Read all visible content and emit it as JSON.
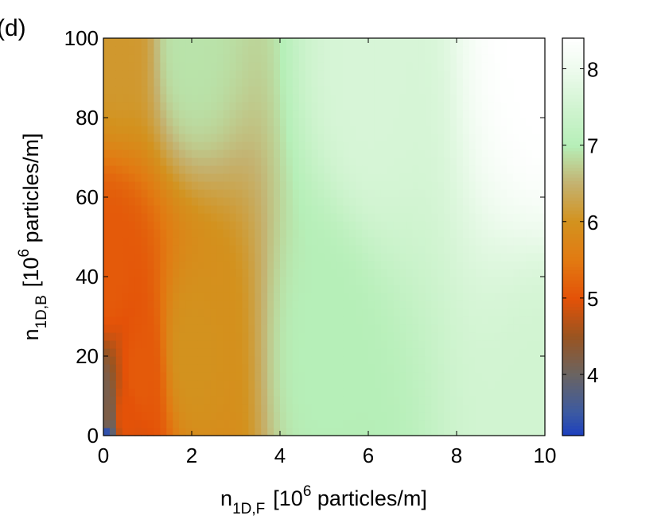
{
  "chart_data": {
    "type": "heatmap",
    "panel_label": "(d)",
    "xlabel": {
      "base": "n",
      "sub": "1D,F",
      "pre": "[10",
      "sup": "6",
      "post": " particles/m]"
    },
    "ylabel": {
      "base": "n",
      "sub": "1D,B",
      "pre": "[10",
      "sup": "6",
      "post": " particles/m]"
    },
    "xlim": [
      0,
      10
    ],
    "ylim": [
      0,
      100
    ],
    "xticks": [
      "0",
      "2",
      "4",
      "6",
      "8",
      "10"
    ],
    "yticks": [
      "0",
      "20",
      "40",
      "60",
      "80",
      "100"
    ],
    "colorbar": {
      "range": [
        3.2,
        8.4
      ],
      "ticks": [
        "4",
        "5",
        "6",
        "7",
        "8"
      ],
      "colors": [
        {
          "value": 3.2,
          "color": "#1c3fbf"
        },
        {
          "value": 3.5,
          "color": "#3c5aa2"
        },
        {
          "value": 4.0,
          "color": "#6a6462"
        },
        {
          "value": 4.5,
          "color": "#9a5420"
        },
        {
          "value": 5.0,
          "color": "#e45208"
        },
        {
          "value": 5.5,
          "color": "#e27a12"
        },
        {
          "value": 6.0,
          "color": "#d3921e"
        },
        {
          "value": 6.5,
          "color": "#c4b270"
        },
        {
          "value": 7.0,
          "color": "#b6efb8"
        },
        {
          "value": 7.5,
          "color": "#d1f4d1"
        },
        {
          "value": 8.0,
          "color": "#eefbee"
        },
        {
          "value": 8.4,
          "color": "#ffffff"
        }
      ]
    },
    "field_samples": [
      {
        "x": 0,
        "y": 0,
        "v": 3.3
      },
      {
        "x": 0.05,
        "y": 5,
        "v": 4.2
      },
      {
        "x": 0.5,
        "y": 5,
        "v": 5.0
      },
      {
        "x": 0.8,
        "y": 15,
        "v": 5.1
      },
      {
        "x": 0.1,
        "y": 40,
        "v": 5.1
      },
      {
        "x": 0.3,
        "y": 100,
        "v": 6.1
      },
      {
        "x": 2,
        "y": 20,
        "v": 6.0
      },
      {
        "x": 2,
        "y": 100,
        "v": 6.9
      },
      {
        "x": 5,
        "y": 20,
        "v": 7.0
      },
      {
        "x": 6,
        "y": 90,
        "v": 7.6
      },
      {
        "x": 10,
        "y": 0,
        "v": 7.5
      },
      {
        "x": 10,
        "y": 100,
        "v": 8.4
      }
    ]
  }
}
